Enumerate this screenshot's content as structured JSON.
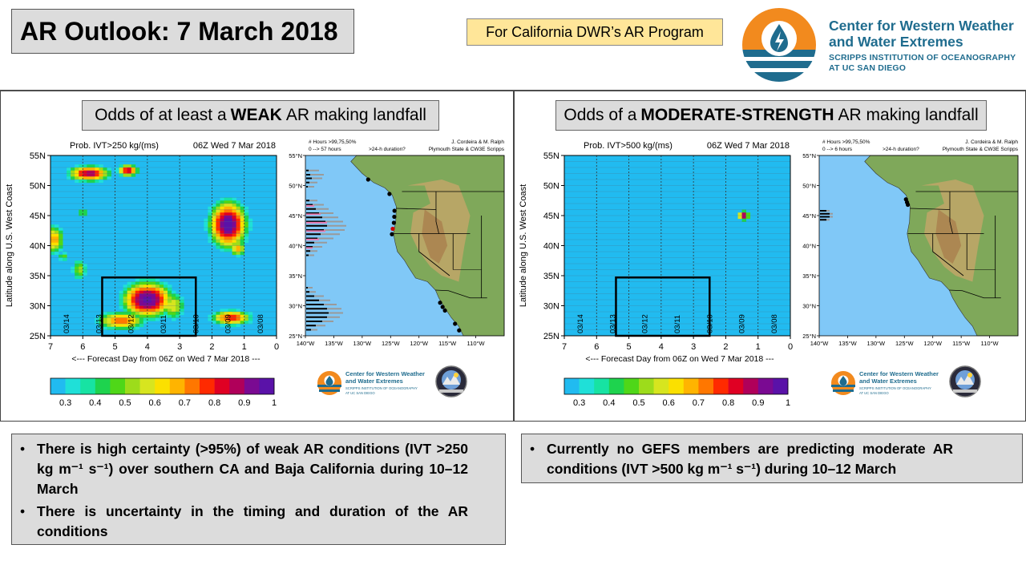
{
  "header": {
    "title": "AR Outlook: 7 March 2018",
    "program": "For California DWR’s AR Program",
    "logo_line1": "Center for Western Weather",
    "logo_line2": "and Water Extremes",
    "logo_line3": "SCRIPPS INSTITUTION OF OCEANOGRAPHY",
    "logo_line4": "AT UC SAN DIEGO"
  },
  "colors": {
    "ocean": "#80c8f7",
    "field": "#21bbf0",
    "logo_orange": "#f28a1e",
    "logo_blue": "#1f6c8e"
  },
  "panels": [
    {
      "subtitle_pre": "Odds of at least a",
      "subtitle_bold": "WEAK",
      "subtitle_post": "AR making landfall",
      "map_header_left1": "# Hours >99,75,50%",
      "map_header_left2": "0 --> 57 hours",
      "map_header_mid": ">24-h duration?",
      "map_header_right1": "J. Cordeira & M. Ralph",
      "map_header_right2": "Plymouth State & CW3E Scripps",
      "bullets": [
        "There is high certainty (>95%) of weak AR conditions (IVT >250 kg m⁻¹ s⁻¹) over southern CA and Baja California during 10–12 March",
        "There is uncertainty in the timing and duration of the AR conditions"
      ]
    },
    {
      "subtitle_pre": "Odds of a",
      "subtitle_bold": "MODERATE-STRENGTH",
      "subtitle_post": "AR making landfall",
      "map_header_left1": "# Hours >99,75,50%",
      "map_header_left2": "0 --> 6 hours",
      "map_header_mid": ">24-h duration?",
      "map_header_right1": "J. Cordeira & M. Ralph",
      "map_header_right2": "Plymouth State & CW3E Scripps",
      "bullets": [
        "Currently no GEFS members are predicting moderate AR conditions (IVT >500 kg m⁻¹ s⁻¹) during 10–12 March"
      ]
    }
  ],
  "chart_data": [
    {
      "type": "heatmap",
      "title": "Prob. IVT>250 kg/(ms)",
      "valid": "06Z Wed 7 Mar 2018",
      "xlabel": "<--- Forecast Day from 06Z on Wed 7 Mar 2018 ---",
      "ylabel": "Latitude along U.S. West Coast",
      "xlim": [
        7,
        0
      ],
      "ylim": [
        25,
        55
      ],
      "x_ticks": [
        "7",
        "6",
        "5",
        "4",
        "3",
        "2",
        "1",
        "0"
      ],
      "y_ticks": [
        "25N",
        "30N",
        "35N",
        "40N",
        "45N",
        "50N",
        "55N"
      ],
      "date_labels": [
        {
          "day": 6.5,
          "label": "03/14"
        },
        {
          "day": 5.5,
          "label": "03/13"
        },
        {
          "day": 4.5,
          "label": "03/12"
        },
        {
          "day": 3.5,
          "label": "03/11"
        },
        {
          "day": 2.5,
          "label": "03/10"
        },
        {
          "day": 1.5,
          "label": "03/09"
        },
        {
          "day": 0.5,
          "label": "03/08"
        }
      ],
      "colorbar_ticks": [
        "0.3",
        "0.4",
        "0.5",
        "0.6",
        "0.7",
        "0.8",
        "0.9",
        "1"
      ],
      "colorbar_colors": [
        "#21bbf0",
        "#1fe0d8",
        "#17e3a3",
        "#1ed34e",
        "#4fd718",
        "#9ddc1b",
        "#d7e51f",
        "#fbe000",
        "#ffb400",
        "#ff7700",
        "#ff2a00",
        "#e00023",
        "#b0005a",
        "#7a0a92",
        "#5a12a8"
      ],
      "highlight_box": {
        "day_from": 5.4,
        "day_to": 2.5,
        "lat_from": 25,
        "lat_to": 34.7
      },
      "regions": [
        {
          "day": 4.0,
          "lat": 31.0,
          "sigma_day": 0.6,
          "sigma_lat": 2.3,
          "peak": 1.0
        },
        {
          "day": 4.8,
          "lat": 27.5,
          "sigma_day": 0.6,
          "sigma_lat": 1.2,
          "peak": 0.75
        },
        {
          "day": 3.2,
          "lat": 30.0,
          "sigma_day": 0.3,
          "sigma_lat": 2.0,
          "peak": 0.6
        },
        {
          "day": 1.4,
          "lat": 28.0,
          "sigma_day": 0.5,
          "sigma_lat": 1.0,
          "peak": 0.8
        },
        {
          "day": 1.5,
          "lat": 43.5,
          "sigma_day": 0.45,
          "sigma_lat": 3.0,
          "peak": 1.0
        },
        {
          "day": 1.2,
          "lat": 39.5,
          "sigma_day": 0.2,
          "sigma_lat": 1.0,
          "peak": 0.7
        },
        {
          "day": 5.8,
          "lat": 52.0,
          "sigma_day": 0.5,
          "sigma_lat": 1.0,
          "peak": 0.9
        },
        {
          "day": 4.6,
          "lat": 52.5,
          "sigma_day": 0.25,
          "sigma_lat": 0.8,
          "peak": 0.85
        },
        {
          "day": 6.9,
          "lat": 41.0,
          "sigma_day": 0.25,
          "sigma_lat": 2.0,
          "peak": 0.7
        },
        {
          "day": 6.1,
          "lat": 36.0,
          "sigma_day": 0.2,
          "sigma_lat": 1.5,
          "peak": 0.55
        },
        {
          "day": 6.0,
          "lat": 45.5,
          "sigma_day": 0.2,
          "sigma_lat": 0.8,
          "peak": 0.45
        },
        {
          "day": 6.6,
          "lat": 38.2,
          "sigma_day": 0.15,
          "sigma_lat": 0.6,
          "peak": 0.5
        }
      ],
      "map": {
        "lon_ticks": [
          "140°W",
          "135°W",
          "130°W",
          "125°W",
          "120°W",
          "115°W",
          "110°W"
        ],
        "lat_ticks": [
          "25°N",
          "30°N",
          "35°N",
          "40°N",
          "45°N",
          "50°N",
          "55°N"
        ],
        "hours_bars": [
          {
            "lat": 52.5,
            "black": 3,
            "grey": 16
          },
          {
            "lat": 51.8,
            "black": 5,
            "grey": 22
          },
          {
            "lat": 51.2,
            "black": 7,
            "grey": 20
          },
          {
            "lat": 50.5,
            "black": 4,
            "grey": 14
          },
          {
            "lat": 49.8,
            "black": 2,
            "grey": 10
          },
          {
            "lat": 47.5,
            "black": 4,
            "grey": 14
          },
          {
            "lat": 46.8,
            "black": 8,
            "grey": 22
          },
          {
            "lat": 46.1,
            "black": 12,
            "grey": 28
          },
          {
            "lat": 45.4,
            "black": 16,
            "grey": 34
          },
          {
            "lat": 44.7,
            "black": 20,
            "grey": 40
          },
          {
            "lat": 44.0,
            "black": 24,
            "grey": 46
          },
          {
            "lat": 43.3,
            "black": 26,
            "grey": 50
          },
          {
            "lat": 42.6,
            "black": 22,
            "grey": 48
          },
          {
            "lat": 41.9,
            "black": 18,
            "grey": 42
          },
          {
            "lat": 41.2,
            "black": 14,
            "grey": 34
          },
          {
            "lat": 40.5,
            "black": 10,
            "grey": 26
          },
          {
            "lat": 39.8,
            "black": 8,
            "grey": 20
          },
          {
            "lat": 39.1,
            "black": 5,
            "grey": 14
          },
          {
            "lat": 38.4,
            "black": 3,
            "grey": 10
          },
          {
            "lat": 33.0,
            "black": 2,
            "grey": 8
          },
          {
            "lat": 32.3,
            "black": 4,
            "grey": 12
          },
          {
            "lat": 31.6,
            "black": 10,
            "grey": 22
          },
          {
            "lat": 30.9,
            "black": 16,
            "grey": 30
          },
          {
            "lat": 30.2,
            "black": 22,
            "grey": 38
          },
          {
            "lat": 29.5,
            "black": 26,
            "grey": 44
          },
          {
            "lat": 28.8,
            "black": 28,
            "grey": 46
          },
          {
            "lat": 28.1,
            "black": 26,
            "grey": 42
          },
          {
            "lat": 27.4,
            "black": 20,
            "grey": 34
          },
          {
            "lat": 26.7,
            "black": 12,
            "grey": 24
          },
          {
            "lat": 26.0,
            "black": 6,
            "grey": 14
          }
        ],
        "pink_bars": [
          {
            "lat": 46.8,
            "len": 10
          },
          {
            "lat": 45.4,
            "len": 18
          },
          {
            "lat": 44.0,
            "len": 26
          },
          {
            "lat": 42.6,
            "len": 24
          },
          {
            "lat": 41.2,
            "len": 16
          },
          {
            "lat": 39.8,
            "len": 8
          }
        ],
        "coast_dots": [
          {
            "lat": 51.0,
            "color": "#000000"
          },
          {
            "lat": 48.6,
            "color": "#000000"
          },
          {
            "lat": 45.8,
            "color": "#000000"
          },
          {
            "lat": 44.8,
            "color": "#000000"
          },
          {
            "lat": 43.8,
            "color": "#000000"
          },
          {
            "lat": 42.8,
            "color": "#cc0000"
          },
          {
            "lat": 41.9,
            "color": "#000000"
          },
          {
            "lat": 30.5,
            "color": "#000000"
          },
          {
            "lat": 29.8,
            "color": "#000000"
          },
          {
            "lat": 29.2,
            "color": "#000000"
          },
          {
            "lat": 27.0,
            "color": "#000000"
          },
          {
            "lat": 25.9,
            "color": "#000000"
          }
        ]
      }
    },
    {
      "type": "heatmap",
      "title": "Prob. IVT>500 kg/(ms)",
      "valid": "06Z Wed 7 Mar 2018",
      "xlabel": "<--- Forecast Day from 06Z on Wed 7 Mar 2018 ---",
      "ylabel": "Latitude along U.S. West Coast",
      "xlim": [
        7,
        0
      ],
      "ylim": [
        25,
        55
      ],
      "x_ticks": [
        "7",
        "6",
        "5",
        "4",
        "3",
        "2",
        "1",
        "0"
      ],
      "y_ticks": [
        "25N",
        "30N",
        "35N",
        "40N",
        "45N",
        "50N",
        "55N"
      ],
      "date_labels": [
        {
          "day": 6.5,
          "label": "03/14"
        },
        {
          "day": 5.5,
          "label": "03/13"
        },
        {
          "day": 4.5,
          "label": "03/12"
        },
        {
          "day": 3.5,
          "label": "03/11"
        },
        {
          "day": 2.5,
          "label": "03/10"
        },
        {
          "day": 1.5,
          "label": "03/09"
        },
        {
          "day": 0.5,
          "label": "03/08"
        }
      ],
      "colorbar_ticks": [
        "0.3",
        "0.4",
        "0.5",
        "0.6",
        "0.7",
        "0.8",
        "0.9",
        "1"
      ],
      "colorbar_colors": [
        "#21bbf0",
        "#1fe0d8",
        "#17e3a3",
        "#1ed34e",
        "#4fd718",
        "#9ddc1b",
        "#d7e51f",
        "#fbe000",
        "#ffb400",
        "#ff7700",
        "#ff2a00",
        "#e00023",
        "#b0005a",
        "#7a0a92",
        "#5a12a8"
      ],
      "highlight_box": {
        "day_from": 5.4,
        "day_to": 2.5,
        "lat_from": 25,
        "lat_to": 34.7
      },
      "regions": [
        {
          "day": 1.45,
          "lat": 45.0,
          "sigma_day": 0.12,
          "sigma_lat": 0.6,
          "peak": 0.95
        },
        {
          "day": 0.75,
          "lat": 42.5,
          "sigma_day": 0.05,
          "sigma_lat": 0.2,
          "peak": 0.4
        }
      ],
      "map": {
        "lon_ticks": [
          "140°W",
          "135°W",
          "130°W",
          "125°W",
          "120°W",
          "115°W",
          "110°W"
        ],
        "lat_ticks": [
          "25°N",
          "30°N",
          "35°N",
          "40°N",
          "45°N",
          "50°N",
          "55°N"
        ],
        "hours_bars": [
          {
            "lat": 45.8,
            "black": 8,
            "grey": 12
          },
          {
            "lat": 45.3,
            "black": 12,
            "grey": 16
          },
          {
            "lat": 44.8,
            "black": 12,
            "grey": 16
          },
          {
            "lat": 44.3,
            "black": 8,
            "grey": 12
          }
        ],
        "pink_bars": [],
        "coast_dots": [
          {
            "lat": 47.7,
            "color": "#000000"
          },
          {
            "lat": 47.2,
            "color": "#000000"
          },
          {
            "lat": 46.8,
            "color": "#000000"
          }
        ]
      }
    }
  ]
}
